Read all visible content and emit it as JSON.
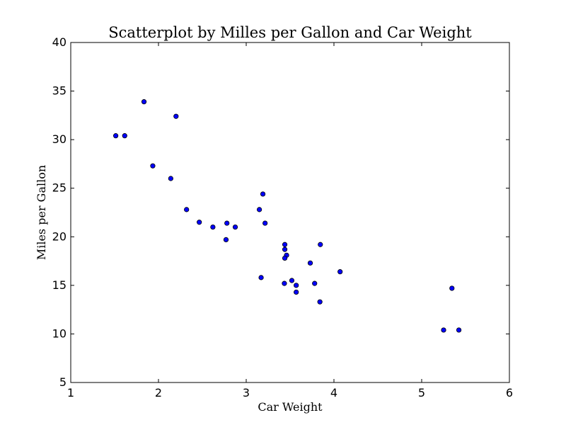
{
  "chart_data": {
    "type": "scatter",
    "title": "Scatterplot by Milles per Gallon and  Car Weight",
    "xlabel": "Car Weight",
    "ylabel": "Miles per Gallon",
    "xlim": [
      1,
      6
    ],
    "ylim": [
      5,
      40
    ],
    "xticks": [
      "1",
      "2",
      "3",
      "4",
      "5",
      "6"
    ],
    "yticks": [
      "5",
      "10",
      "15",
      "20",
      "25",
      "30",
      "35",
      "40"
    ],
    "grid": false,
    "marker_color": "#0000ff",
    "points": [
      {
        "x": 2.62,
        "y": 21.0
      },
      {
        "x": 2.875,
        "y": 21.0
      },
      {
        "x": 2.32,
        "y": 22.8
      },
      {
        "x": 3.215,
        "y": 21.4
      },
      {
        "x": 3.44,
        "y": 18.7
      },
      {
        "x": 3.46,
        "y": 18.1
      },
      {
        "x": 3.57,
        "y": 14.3
      },
      {
        "x": 3.19,
        "y": 24.4
      },
      {
        "x": 3.15,
        "y": 22.8
      },
      {
        "x": 3.44,
        "y": 19.2
      },
      {
        "x": 3.44,
        "y": 17.8
      },
      {
        "x": 4.07,
        "y": 16.4
      },
      {
        "x": 3.73,
        "y": 17.3
      },
      {
        "x": 3.78,
        "y": 15.2
      },
      {
        "x": 5.25,
        "y": 10.4
      },
      {
        "x": 5.424,
        "y": 10.4
      },
      {
        "x": 5.345,
        "y": 14.7
      },
      {
        "x": 2.2,
        "y": 32.4
      },
      {
        "x": 1.615,
        "y": 30.4
      },
      {
        "x": 1.835,
        "y": 33.9
      },
      {
        "x": 2.465,
        "y": 21.5
      },
      {
        "x": 3.52,
        "y": 15.5
      },
      {
        "x": 3.435,
        "y": 15.2
      },
      {
        "x": 3.84,
        "y": 13.3
      },
      {
        "x": 3.845,
        "y": 19.2
      },
      {
        "x": 1.935,
        "y": 27.3
      },
      {
        "x": 2.14,
        "y": 26.0
      },
      {
        "x": 1.513,
        "y": 30.4
      },
      {
        "x": 3.17,
        "y": 15.8
      },
      {
        "x": 2.77,
        "y": 19.7
      },
      {
        "x": 3.57,
        "y": 15.0
      },
      {
        "x": 2.78,
        "y": 21.4
      }
    ]
  }
}
